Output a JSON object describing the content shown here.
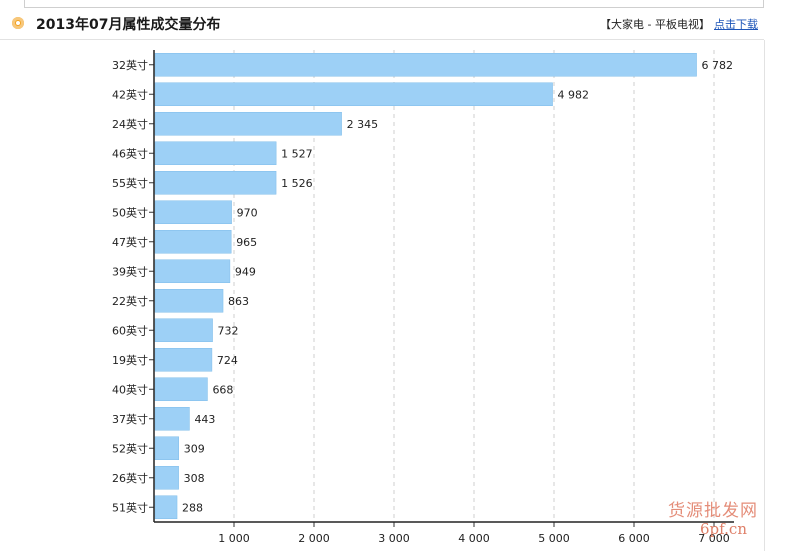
{
  "header": {
    "title": "2013年07月属性成交量分布",
    "breadcrumb": "【大家电 - 平板电视】",
    "download_label": "点击下载"
  },
  "watermark": {
    "line1": "货源批发网",
    "line2": "6pf.cn"
  },
  "colors": {
    "bar": "#9dd0f6",
    "bar_edge": "#7fbde9",
    "grid": "#cfcfcf",
    "bullet": "#f2a11c",
    "link": "#1d55b8"
  },
  "chart_data": {
    "type": "bar",
    "orientation": "horizontal",
    "title": "",
    "xlabel": "",
    "ylabel": "",
    "xlim": [
      0,
      7000
    ],
    "grid": true,
    "legend": "none",
    "x_ticks": [
      "1 000",
      "2 000",
      "3 000",
      "4 000",
      "5 000",
      "6 000",
      "7 000"
    ],
    "categories": [
      "32英寸",
      "42英寸",
      "24英寸",
      "46英寸",
      "55英寸",
      "50英寸",
      "47英寸",
      "39英寸",
      "22英寸",
      "60英寸",
      "19英寸",
      "40英寸",
      "37英寸",
      "52英寸",
      "26英寸",
      "51英寸"
    ],
    "values": [
      6782,
      4982,
      2345,
      1527,
      1526,
      970,
      965,
      949,
      863,
      732,
      724,
      668,
      443,
      309,
      308,
      288
    ],
    "value_labels": [
      "6 782",
      "4 982",
      "2 345",
      "1 527",
      "1 526",
      "970",
      "965",
      "949",
      "863",
      "732",
      "724",
      "668",
      "443",
      "309",
      "308",
      "288"
    ]
  }
}
